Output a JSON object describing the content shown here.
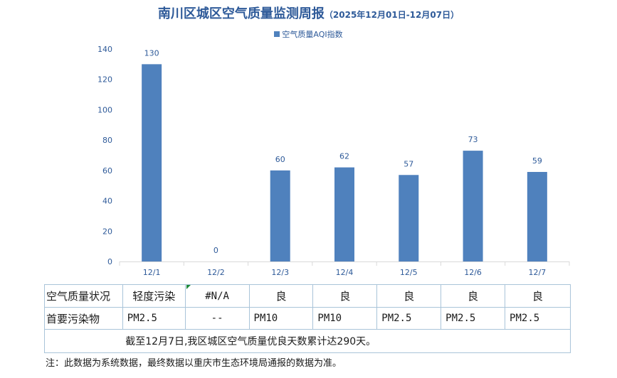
{
  "title": "南川区城区空气质量监测周报",
  "subtitle": "（2025年12月01日-12月07日）",
  "legend": {
    "label": "空气质量AQI指数",
    "color": "#4f81bd"
  },
  "chart_data": {
    "type": "bar",
    "title": "南川区城区空气质量监测周报（2025年12月01日-12月07日）",
    "categories": [
      "12/1",
      "12/2",
      "12/3",
      "12/4",
      "12/5",
      "12/6",
      "12/7"
    ],
    "series": [
      {
        "name": "空气质量AQI指数",
        "values": [
          130,
          0,
          60,
          62,
          57,
          73,
          59
        ],
        "color": "#4f81bd"
      }
    ],
    "data_labels": [
      "130",
      "0",
      "60",
      "62",
      "57",
      "73",
      "59"
    ],
    "yticks": [
      0,
      20,
      40,
      60,
      80,
      100,
      120,
      140
    ],
    "ylim": [
      0,
      140
    ],
    "grid": false,
    "legend_position": "top-center"
  },
  "table": {
    "row1_label": "空气质量状况",
    "row1_values": [
      "轻度污染",
      "#N/A",
      "良",
      "良",
      "良",
      "良",
      "良"
    ],
    "row2_label": "首要污染物",
    "row2_values": [
      "PM2.5",
      "--",
      "PM10",
      "PM10",
      "PM2.5",
      "PM2.5",
      "PM2.5"
    ],
    "summary": "截至12月7日,我区城区空气质量优良天数累计达290天。"
  },
  "note": "注：此数据为系统数据，最终数据以重庆市生态环境局通报的数据为准。"
}
